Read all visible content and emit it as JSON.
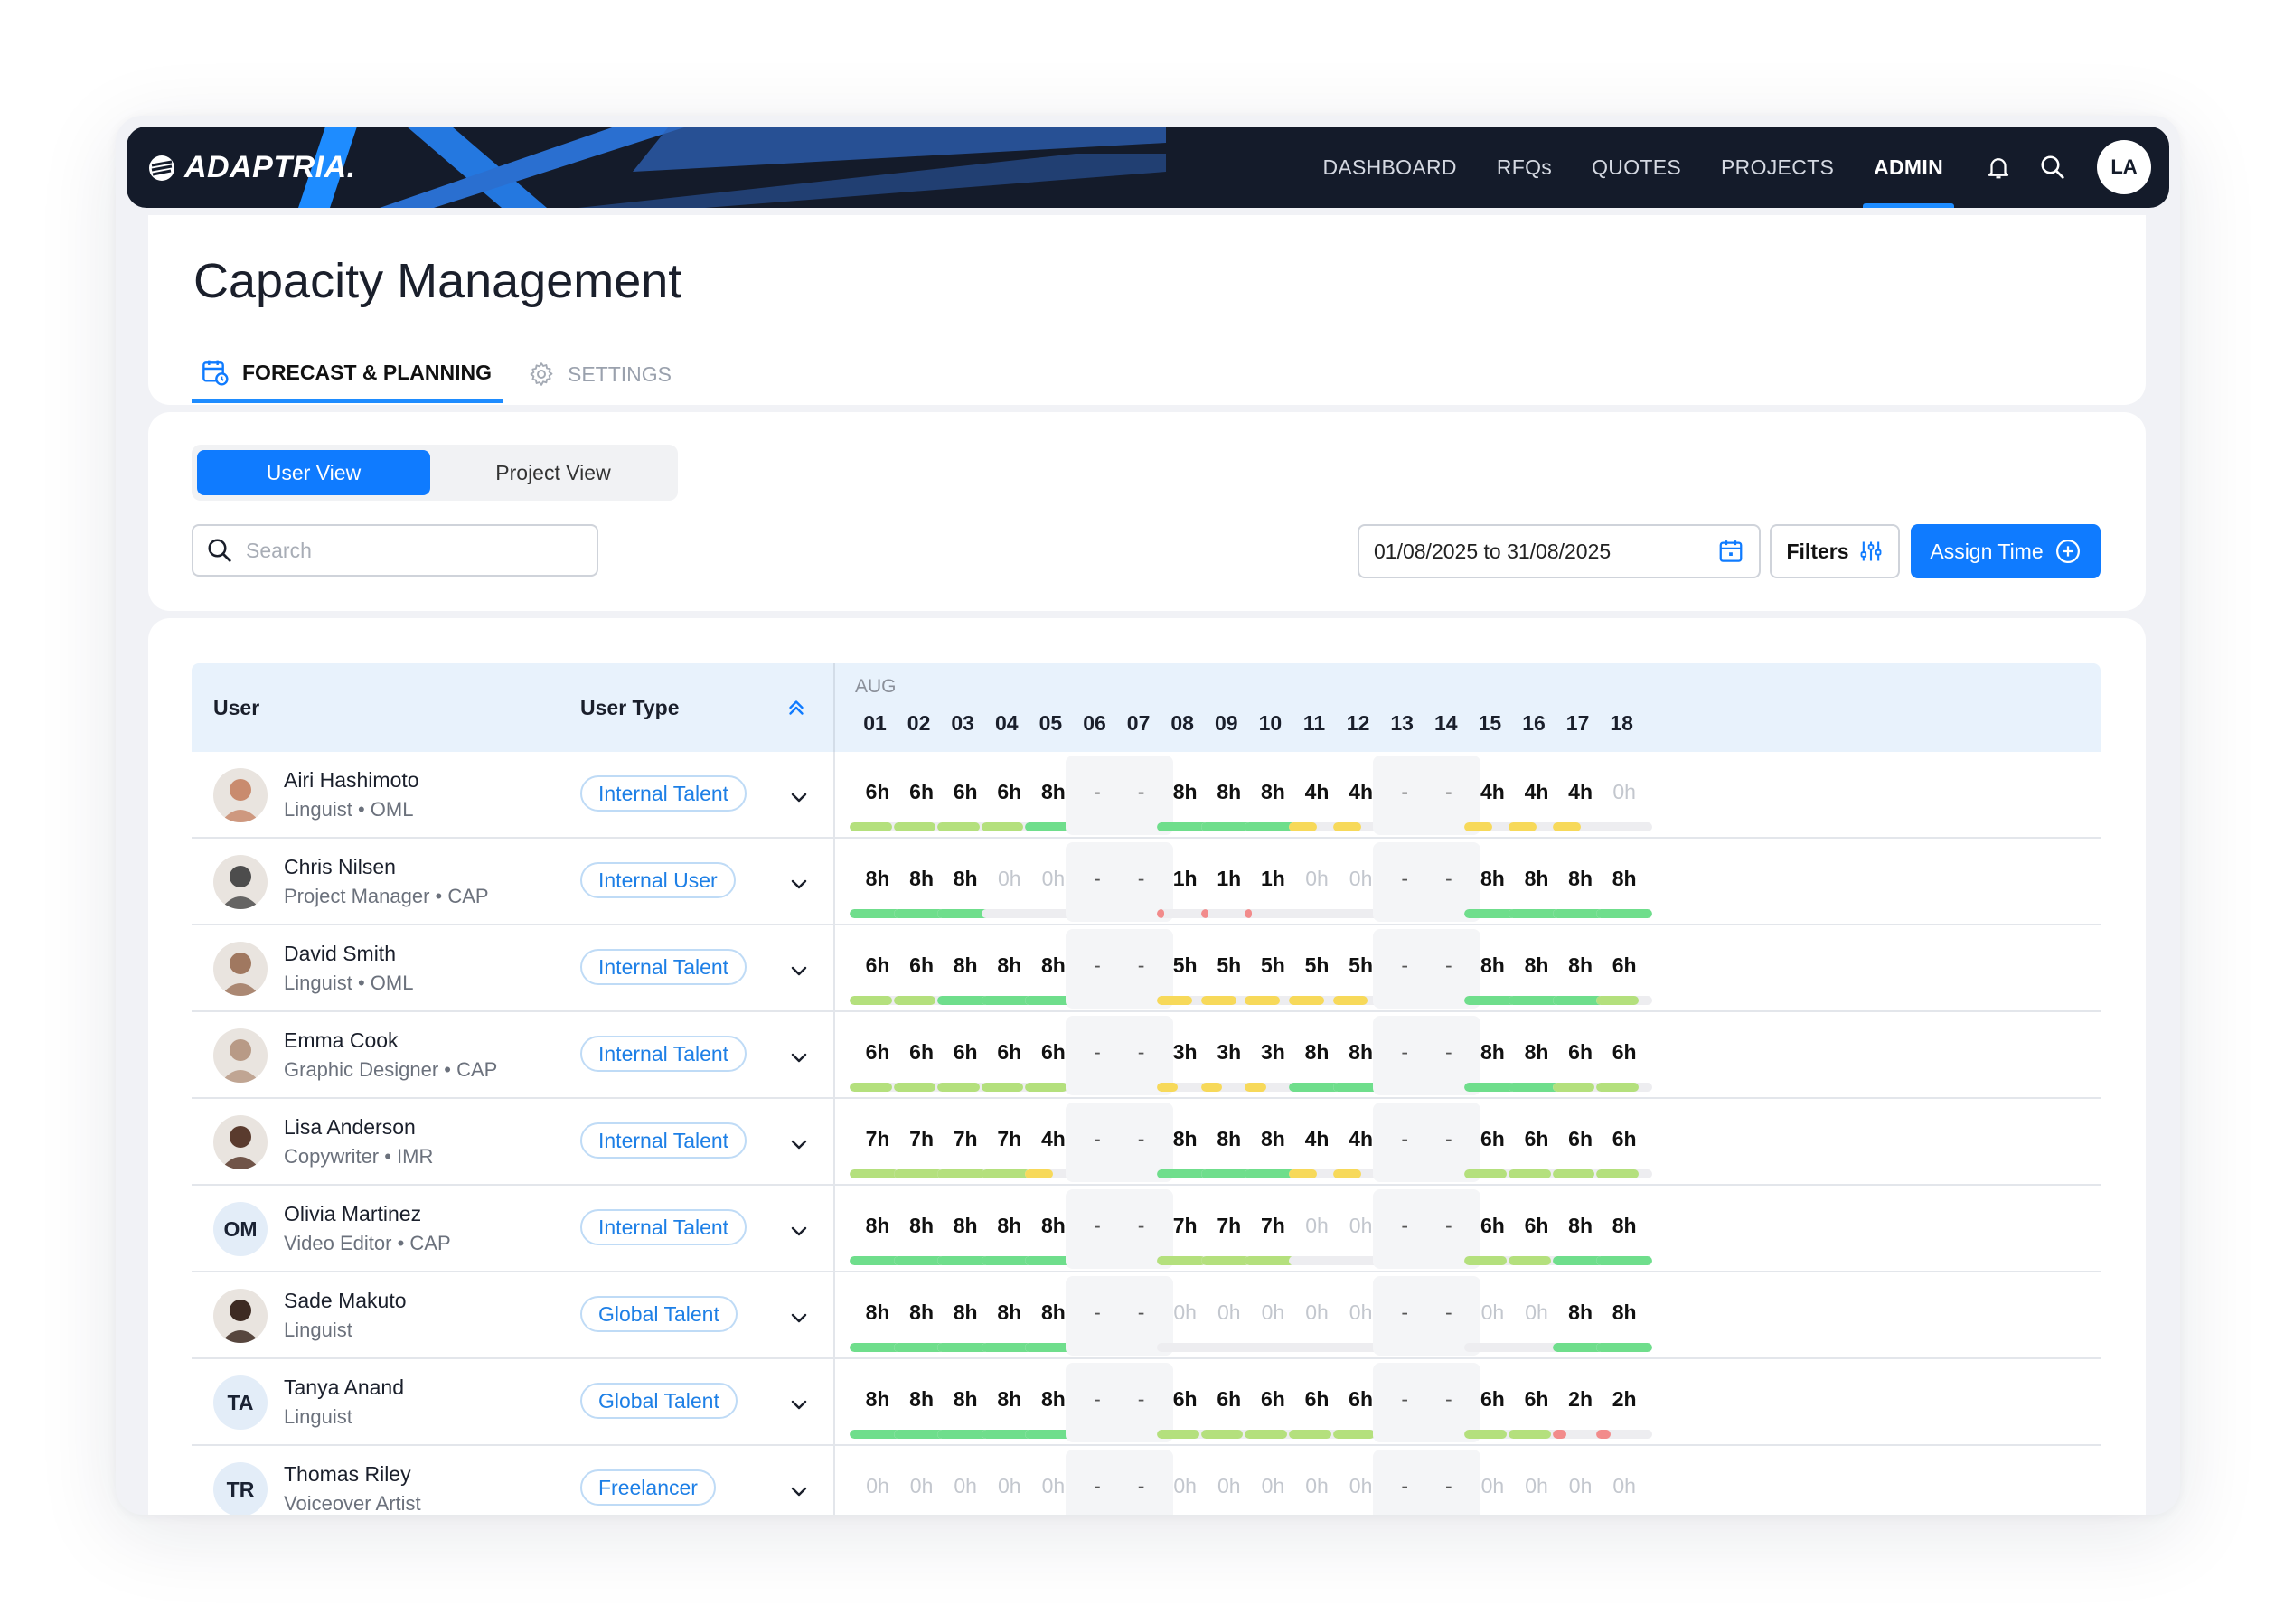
{
  "nav": {
    "logo_text": "ADAPTRIA.",
    "items": [
      {
        "label": "DASHBOARD"
      },
      {
        "label": "RFQs"
      },
      {
        "label": "QUOTES"
      },
      {
        "label": "PROJECTS"
      },
      {
        "label": "ADMIN"
      }
    ],
    "active_item": "ADMIN",
    "avatar_initials": "LA"
  },
  "page": {
    "title": "Capacity Management",
    "tabs": [
      {
        "label": "FORECAST & PLANNING",
        "icon": "calendar-clock-icon",
        "active": true
      },
      {
        "label": "SETTINGS",
        "icon": "gear-icon",
        "active": false
      }
    ]
  },
  "controls": {
    "view_toggle": [
      "User View",
      "Project View"
    ],
    "active_view": "User View",
    "search_placeholder": "Search",
    "date_range": "01/08/2025 to 31/08/2025",
    "filters_label": "Filters",
    "assign_label": "Assign Time"
  },
  "colors": {
    "accent": "#0f7bff",
    "bar_full": "#6fde8c",
    "bar_mid": "#b4e07d",
    "bar_low": "#f7d95a",
    "bar_min": "#f28b8b"
  },
  "table": {
    "headers": {
      "user": "User",
      "user_type": "User Type",
      "month": "AUG"
    },
    "days": [
      "01",
      "02",
      "03",
      "04",
      "05",
      "06",
      "07",
      "08",
      "09",
      "10",
      "11",
      "12",
      "13",
      "14",
      "15",
      "16",
      "17",
      "18"
    ],
    "rows": [
      {
        "name": "Airi Hashimoto",
        "role": "Linguist • OML",
        "type": "Internal Talent",
        "avatar": "photo",
        "hours": [
          "6h",
          "6h",
          "6h",
          "6h",
          "8h",
          "-",
          "-",
          "8h",
          "8h",
          "8h",
          "4h",
          "4h",
          "-",
          "-",
          "4h",
          "4h",
          "4h",
          "0h"
        ]
      },
      {
        "name": "Chris Nilsen",
        "role": "Project Manager • CAP",
        "type": "Internal User",
        "avatar": "photo",
        "hours": [
          "8h",
          "8h",
          "8h",
          "0h",
          "0h",
          "-",
          "-",
          "1h",
          "1h",
          "1h",
          "0h",
          "0h",
          "-",
          "-",
          "8h",
          "8h",
          "8h",
          "8h"
        ]
      },
      {
        "name": "David Smith",
        "role": "Linguist • OML",
        "type": "Internal Talent",
        "avatar": "photo",
        "hours": [
          "6h",
          "6h",
          "8h",
          "8h",
          "8h",
          "-",
          "-",
          "5h",
          "5h",
          "5h",
          "5h",
          "5h",
          "-",
          "-",
          "8h",
          "8h",
          "8h",
          "6h"
        ]
      },
      {
        "name": "Emma Cook",
        "role": "Graphic Designer • CAP",
        "type": "Internal Talent",
        "avatar": "photo",
        "hours": [
          "6h",
          "6h",
          "6h",
          "6h",
          "6h",
          "-",
          "-",
          "3h",
          "3h",
          "3h",
          "8h",
          "8h",
          "-",
          "-",
          "8h",
          "8h",
          "6h",
          "6h"
        ]
      },
      {
        "name": "Lisa Anderson",
        "role": "Copywriter • IMR",
        "type": "Internal Talent",
        "avatar": "photo",
        "hours": [
          "7h",
          "7h",
          "7h",
          "7h",
          "4h",
          "-",
          "-",
          "8h",
          "8h",
          "8h",
          "4h",
          "4h",
          "-",
          "-",
          "6h",
          "6h",
          "6h",
          "6h"
        ]
      },
      {
        "name": "Olivia Martinez",
        "role": "Video Editor • CAP",
        "type": "Internal Talent",
        "avatar": "OM",
        "hours": [
          "8h",
          "8h",
          "8h",
          "8h",
          "8h",
          "-",
          "-",
          "7h",
          "7h",
          "7h",
          "0h",
          "0h",
          "-",
          "-",
          "6h",
          "6h",
          "8h",
          "8h"
        ]
      },
      {
        "name": "Sade Makuto",
        "role": "Linguist",
        "type": "Global Talent",
        "avatar": "photo",
        "hours": [
          "8h",
          "8h",
          "8h",
          "8h",
          "8h",
          "-",
          "-",
          "0h",
          "0h",
          "0h",
          "0h",
          "0h",
          "-",
          "-",
          "0h",
          "0h",
          "8h",
          "8h"
        ]
      },
      {
        "name": "Tanya Anand",
        "role": "Linguist",
        "type": "Global Talent",
        "avatar": "TA",
        "hours": [
          "8h",
          "8h",
          "8h",
          "8h",
          "8h",
          "-",
          "-",
          "6h",
          "6h",
          "6h",
          "6h",
          "6h",
          "-",
          "-",
          "6h",
          "6h",
          "2h",
          "2h"
        ]
      },
      {
        "name": "Thomas Riley",
        "role": "Voiceover Artist",
        "type": "Freelancer",
        "avatar": "TR",
        "hours": [
          "0h",
          "0h",
          "0h",
          "0h",
          "0h",
          "-",
          "-",
          "0h",
          "0h",
          "0h",
          "0h",
          "0h",
          "-",
          "-",
          "0h",
          "0h",
          "0h",
          "0h"
        ]
      }
    ]
  }
}
